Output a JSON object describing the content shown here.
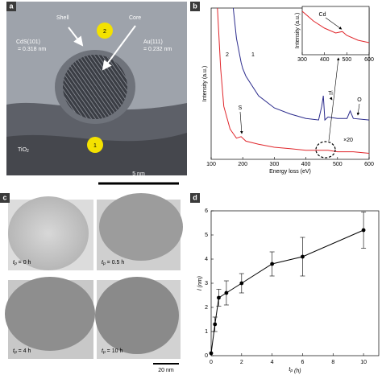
{
  "panel_labels": [
    "a",
    "b",
    "c",
    "d"
  ],
  "image_a": {
    "shell": "Shell",
    "core": "Core",
    "cds_plane": "CdS(101)",
    "cds_spacing": "= 0.318 nm",
    "au_plane": "Au(111)",
    "au_spacing": "= 0.232 nm",
    "tio2": {
      "main": "TiO",
      "sub": "2"
    },
    "site_1": "1",
    "site_2": "2",
    "scale_bar": "5 nm"
  },
  "image_c": {
    "frames": [
      {
        "t": "t",
        "sub": "p",
        "rest": " = 0 h"
      },
      {
        "t": "t",
        "sub": "p",
        "rest": " = 0.5 h"
      },
      {
        "t": "t",
        "sub": "p",
        "rest": " = 4 h"
      },
      {
        "t": "t",
        "sub": "p",
        "rest": " = 10 h"
      }
    ],
    "scale_bar": "20 nm"
  },
  "chart_data": [
    {
      "type": "line",
      "x_label": "Energy loss (eV)",
      "y_label": "Intensity (a.u.)",
      "x": [
        120,
        130,
        140,
        160,
        170,
        180,
        195,
        200,
        210,
        250,
        300,
        350,
        400,
        440,
        450,
        455,
        460,
        470,
        500,
        530,
        540,
        550,
        600
      ],
      "series": [
        {
          "name": "1",
          "color": "#2b2b8c",
          "values": [
            null,
            null,
            null,
            null,
            100,
            80,
            64,
            60,
            55,
            42,
            34,
            30,
            27,
            26,
            35,
            42,
            26,
            28,
            27,
            27,
            32,
            27,
            26
          ]
        },
        {
          "name": "2",
          "color": "#e0262b",
          "values": [
            100,
            60,
            35,
            20,
            17,
            14,
            15,
            14,
            12,
            10,
            8,
            7,
            6,
            6,
            6,
            6,
            6,
            6,
            5,
            5,
            5,
            5,
            4
          ]
        }
      ],
      "annotations": [
        "S",
        "Ti",
        "O",
        "×20"
      ],
      "xlim": [
        100,
        600
      ],
      "ylim": [
        0,
        100
      ],
      "xticks": [
        100,
        200,
        300,
        400,
        500,
        600
      ]
    },
    {
      "type": "line",
      "y_label": "Intensity (a.u.)",
      "x": [
        300,
        350,
        400,
        450,
        480,
        500,
        550,
        600
      ],
      "series": [
        {
          "color": "#e0262b",
          "values": [
            90,
            70,
            55,
            45,
            48,
            40,
            30,
            25
          ]
        }
      ],
      "annotations": [
        "Cd"
      ],
      "xlim": [
        300,
        600
      ],
      "ylim": [
        0,
        100
      ],
      "xticks": [
        300,
        400,
        500,
        600
      ]
    },
    {
      "type": "errorline",
      "x_label": {
        "main": "t",
        "sub": "p",
        "unit": " (h)"
      },
      "y_label": {
        "main": "l",
        "unit": " (nm)"
      },
      "x": [
        0,
        0.25,
        0.5,
        1,
        2,
        4,
        6,
        10
      ],
      "series": [
        {
          "color": "#000000",
          "values": [
            0.1,
            1.3,
            2.4,
            2.6,
            3.0,
            3.8,
            4.1,
            5.2
          ],
          "errors": [
            0,
            0.3,
            0.35,
            0.5,
            0.4,
            0.5,
            0.8,
            0.75
          ]
        }
      ],
      "xlim": [
        0,
        11
      ],
      "ylim": [
        0,
        6
      ],
      "xticks": [
        0,
        2,
        4,
        6,
        8,
        10
      ],
      "yticks": [
        0,
        1,
        2,
        3,
        4,
        5,
        6
      ]
    }
  ]
}
